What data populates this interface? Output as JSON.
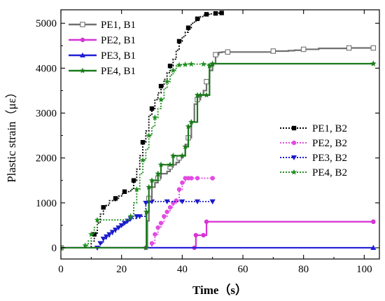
{
  "chart_data": {
    "type": "line",
    "xlabel": "Time（s）",
    "ylabel": "Plastic strain（με）",
    "xlim": [
      0,
      105
    ],
    "ylim": [
      -250,
      5300
    ],
    "x_ticks": [
      0,
      20,
      40,
      60,
      80,
      100
    ],
    "y_ticks": [
      0,
      1000,
      2000,
      3000,
      4000,
      5000
    ],
    "grid": false,
    "legends": [
      {
        "placement": "top-left",
        "entries": [
          "PE1, B1",
          "PE2, B1",
          "PE3, B1",
          "PE4, B1"
        ]
      },
      {
        "placement": "middle-right",
        "entries": [
          "PE1, B2",
          "PE2, B2",
          "PE3, B2",
          "PE4, B2"
        ]
      }
    ],
    "series": [
      {
        "name": "PE1, B1",
        "color": "#707070",
        "style": "solid",
        "marker": "square-open",
        "x": [
          0,
          28,
          28.5,
          29,
          30,
          31,
          32,
          33,
          35,
          36,
          37,
          38,
          39,
          40,
          41,
          42,
          43,
          44,
          45,
          46,
          47,
          48,
          49,
          50,
          51,
          52,
          53,
          55,
          60,
          65,
          70,
          75,
          77,
          80,
          85,
          90,
          95,
          100,
          103
        ],
        "y": [
          0,
          0,
          600,
          1100,
          1350,
          1450,
          1550,
          1650,
          1700,
          1800,
          1850,
          1900,
          2000,
          2050,
          2300,
          2450,
          2800,
          3200,
          3300,
          3400,
          3500,
          3700,
          3950,
          4100,
          4300,
          4350,
          4360,
          4360,
          4360,
          4360,
          4380,
          4390,
          4400,
          4420,
          4440,
          4440,
          4450,
          4450,
          4450
        ]
      },
      {
        "name": "PE2, B1",
        "color": "#d633d6",
        "style": "solid",
        "marker": "circle",
        "x": [
          0,
          44,
          44.5,
          47,
          48,
          103
        ],
        "y": [
          0,
          0,
          280,
          280,
          580,
          580
        ]
      },
      {
        "name": "PE3, B1",
        "color": "#1f1fd6",
        "style": "solid",
        "marker": "triangle",
        "x": [
          0,
          103
        ],
        "y": [
          0,
          0
        ]
      },
      {
        "name": "PE4, B1",
        "color": "#1a7a1a",
        "style": "solid",
        "marker": "star",
        "x": [
          0,
          28,
          28.2,
          29,
          30,
          32,
          33,
          36,
          37,
          40,
          41,
          42,
          43,
          45,
          46,
          48,
          49,
          50,
          103
        ],
        "y": [
          0,
          0,
          800,
          1350,
          1500,
          1650,
          1850,
          1850,
          2050,
          2050,
          2250,
          2700,
          2800,
          3400,
          3400,
          3400,
          4050,
          4100,
          4100
        ]
      },
      {
        "name": "PE1, B2",
        "color": "#000000",
        "style": "dotted",
        "marker": "square",
        "x": [
          0,
          9,
          10,
          11,
          12,
          13,
          14,
          15,
          16,
          18,
          19,
          20,
          21,
          22,
          23,
          24,
          25,
          26,
          27,
          28,
          29,
          30,
          31,
          32,
          33,
          34,
          35,
          36,
          37,
          38,
          39,
          40,
          41,
          42,
          43,
          44,
          45,
          46,
          47,
          48,
          49,
          50,
          51,
          52,
          53
        ],
        "y": [
          0,
          0,
          150,
          300,
          550,
          750,
          900,
          950,
          1050,
          1100,
          1150,
          1200,
          1250,
          1250,
          1300,
          1500,
          1750,
          2050,
          2350,
          2600,
          2950,
          3100,
          3300,
          3450,
          3600,
          3750,
          3900,
          4050,
          4200,
          4400,
          4600,
          4700,
          4800,
          4900,
          5000,
          5050,
          5100,
          5150,
          5180,
          5200,
          5210,
          5210,
          5220,
          5230,
          5230
        ]
      },
      {
        "name": "PE2, B2",
        "color": "#e24be2",
        "style": "dotted",
        "marker": "circle",
        "x": [
          0,
          28,
          30,
          31,
          32,
          33,
          34,
          35,
          36,
          37,
          38,
          39,
          40,
          41,
          42,
          43,
          45,
          50
        ],
        "y": [
          0,
          0,
          100,
          300,
          450,
          550,
          700,
          800,
          900,
          1000,
          1050,
          1300,
          1450,
          1550,
          1550,
          1550,
          1550,
          1550
        ]
      },
      {
        "name": "PE3, B2",
        "color": "#1a1acc",
        "style": "dotted",
        "marker": "triangle-down",
        "x": [
          0,
          12,
          13,
          14,
          15,
          16,
          17,
          18,
          19,
          20,
          21,
          22,
          23,
          25,
          26,
          28,
          29,
          30,
          35,
          40,
          45,
          50
        ],
        "y": [
          0,
          0,
          100,
          200,
          250,
          300,
          350,
          400,
          450,
          500,
          550,
          600,
          650,
          700,
          700,
          1000,
          1020,
          1030,
          1030,
          1030,
          1030,
          1030
        ]
      },
      {
        "name": "PE4, B2",
        "color": "#1f8f1f",
        "style": "dotted",
        "marker": "star",
        "x": [
          0,
          7,
          8,
          9,
          10,
          11,
          12,
          22,
          23,
          24,
          25,
          26,
          27,
          28,
          29,
          30,
          31,
          32,
          33,
          34,
          35,
          36,
          37,
          38,
          39,
          40,
          41,
          42,
          43,
          45,
          47,
          50
        ],
        "y": [
          0,
          0,
          50,
          150,
          300,
          450,
          620,
          620,
          700,
          1000,
          1300,
          1650,
          1950,
          2200,
          2500,
          2700,
          2900,
          3100,
          3300,
          3550,
          3700,
          3850,
          3950,
          4050,
          4070,
          4080,
          4080,
          4090,
          4090,
          4090,
          4090,
          4090
        ]
      }
    ]
  }
}
